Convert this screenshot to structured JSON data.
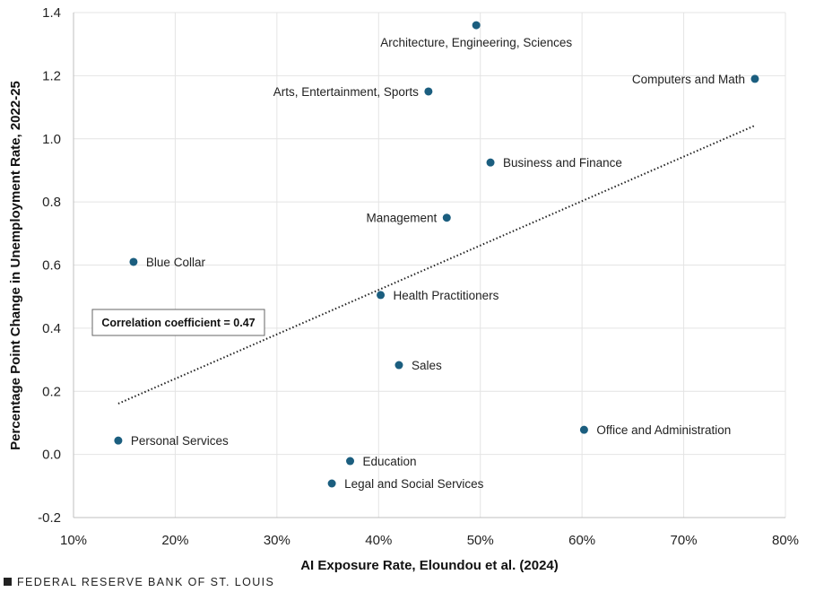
{
  "chart_data": {
    "type": "scatter",
    "xlabel": "AI Exposure Rate, Eloundou et al. (2024)",
    "ylabel": "Percentage Point Change in Unemployment Rate, 2022-25",
    "xlim": [
      10,
      80
    ],
    "ylim": [
      -0.2,
      1.4
    ],
    "x_ticks": [
      "10%",
      "20%",
      "30%",
      "40%",
      "50%",
      "60%",
      "70%",
      "80%"
    ],
    "y_ticks": [
      "-0.2",
      "0.0",
      "0.2",
      "0.4",
      "0.6",
      "0.8",
      "1.0",
      "1.2",
      "1.4"
    ],
    "grid": true,
    "points": [
      {
        "label": "Architecture, Engineering, Sciences",
        "x": 49.6,
        "y": 1.36
      },
      {
        "label": "Computers and Math",
        "x": 77.0,
        "y": 1.19
      },
      {
        "label": "Arts, Entertainment, Sports",
        "x": 44.9,
        "y": 1.15
      },
      {
        "label": "Business and Finance",
        "x": 51.0,
        "y": 0.925
      },
      {
        "label": "Management",
        "x": 46.7,
        "y": 0.75
      },
      {
        "label": "Blue Collar",
        "x": 15.9,
        "y": 0.61
      },
      {
        "label": "Health Practitioners",
        "x": 40.2,
        "y": 0.505
      },
      {
        "label": "Sales",
        "x": 42.0,
        "y": 0.283
      },
      {
        "label": "Office and Administration",
        "x": 60.2,
        "y": 0.078
      },
      {
        "label": "Personal Services",
        "x": 14.4,
        "y": 0.044
      },
      {
        "label": "Education",
        "x": 37.2,
        "y": -0.021
      },
      {
        "label": "Legal and Social Services",
        "x": 35.4,
        "y": -0.092
      }
    ],
    "trendline": {
      "x": [
        14.4,
        77.0
      ],
      "y": [
        0.161,
        1.042
      ],
      "style": "dotted"
    },
    "annotation": "Correlation coefficient = 0.47",
    "colors": {
      "point": "#1b5e7f",
      "grid": "#e4e4e4",
      "axis": "#bfbfbf"
    }
  },
  "footer": "FEDERAL RESERVE BANK OF ST. LOUIS"
}
